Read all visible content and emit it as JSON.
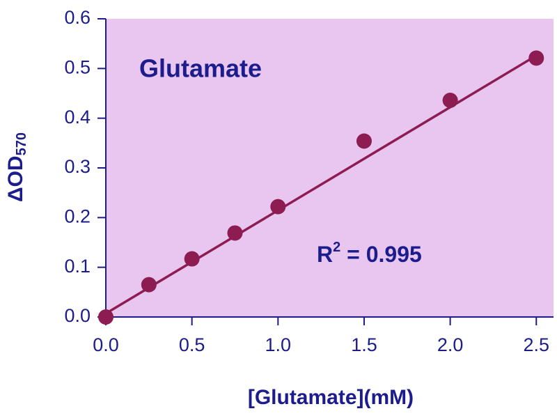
{
  "chart_data": {
    "type": "scatter",
    "title": "Glutamate",
    "annotation": {
      "base": "R",
      "sup": "2",
      "rest": " = 0.995"
    },
    "x_label": "[Glutamate](mM)",
    "y_label": {
      "base": "ΔOD",
      "sub": "570"
    },
    "x": [
      0,
      0.25,
      0.5,
      0.75,
      1.0,
      1.5,
      2.0,
      2.5
    ],
    "values": [
      0.0,
      0.065,
      0.117,
      0.169,
      0.222,
      0.354,
      0.436,
      0.521
    ],
    "color": "#8c1c52",
    "fit_line": {
      "x": [
        0,
        2.5
      ],
      "values": [
        0.007,
        0.526
      ],
      "color": "#8c1c52"
    },
    "xlim": [
      0,
      2.6
    ],
    "ylim": [
      0,
      0.6
    ],
    "xticks": [
      {
        "value": 0,
        "label": "0.0"
      },
      0.5,
      {
        "value": 1,
        "label": "1.0"
      },
      1.5,
      {
        "value": 2,
        "label": "2.0"
      },
      2.5
    ],
    "yticks": [
      {
        "value": 0,
        "label": "0.0"
      },
      0.1,
      0.2,
      0.3,
      0.4,
      0.5,
      0.6
    ],
    "plot_background": "#e8c6f0",
    "text_color": "#1c1c8c"
  }
}
